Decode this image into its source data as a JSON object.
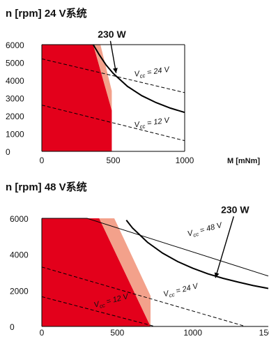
{
  "chart_data": [
    {
      "type": "line",
      "title": "n [rpm]   24 V系统",
      "xlabel": "M [mNm]",
      "xlim": [
        0,
        1000
      ],
      "ylim": [
        0,
        6000
      ],
      "x_ticks": [
        0,
        500,
        1000
      ],
      "y_ticks": [
        0,
        1000,
        2000,
        3000,
        4000,
        5000,
        6000
      ],
      "regions": [
        {
          "name": "continuous-operation",
          "color": "#e3001b",
          "points": [
            [
              0,
              0
            ],
            [
              0,
              6000
            ],
            [
              360,
              6000
            ],
            [
              490,
              2300
            ],
            [
              490,
              0
            ]
          ]
        },
        {
          "name": "short-term-operation",
          "color": "#f3a18b",
          "points": [
            [
              360,
              6000
            ],
            [
              410,
              6000
            ],
            [
              490,
              3400
            ],
            [
              490,
              2300
            ]
          ]
        }
      ],
      "series": [
        {
          "name": "230 W",
          "style": "solid",
          "color": "#000000",
          "width": 2,
          "x": [
            360,
            400,
            450,
            500,
            600,
            700,
            800,
            900,
            1000
          ],
          "y": [
            6000,
            5460,
            4850,
            4380,
            3650,
            3130,
            2740,
            2430,
            2190
          ]
        },
        {
          "name": "Vcc = 24 V",
          "style": "dashed",
          "color": "#000000",
          "width": 1,
          "x": [
            0,
            1000
          ],
          "y": [
            5200,
            3300
          ]
        },
        {
          "name": "Vcc = 12 V",
          "style": "dashed",
          "color": "#000000",
          "width": 1,
          "x": [
            0,
            1000
          ],
          "y": [
            2600,
            600
          ]
        }
      ],
      "annotations": [
        {
          "text": "230 W",
          "kind": "power",
          "x": 490,
          "y": 6400,
          "arrow_to": [
            520,
            4400
          ]
        },
        {
          "text": "V",
          "sub": "cc",
          "rest": " = 24 V",
          "x": 650,
          "y": 4200,
          "rotate": -8
        },
        {
          "text": "V",
          "sub": "cc",
          "rest": " = 12 V",
          "x": 650,
          "y": 1350,
          "rotate": -8
        }
      ]
    },
    {
      "type": "line",
      "title": "n [rpm]   48 V系统",
      "xlabel": "",
      "xlim": [
        0,
        1500
      ],
      "ylim": [
        0,
        6000
      ],
      "x_ticks": [
        0,
        500,
        1000,
        1500
      ],
      "y_ticks": [
        0,
        2000,
        4000,
        6000
      ],
      "regions": [
        {
          "name": "continuous-operation",
          "color": "#e3001b",
          "points": [
            [
              0,
              0
            ],
            [
              0,
              6000
            ],
            [
              380,
              6000
            ],
            [
              720,
              0
            ]
          ]
        },
        {
          "name": "short-term-operation",
          "color": "#f3a18b",
          "points": [
            [
              380,
              6000
            ],
            [
              480,
              6000
            ],
            [
              720,
              1700
            ],
            [
              720,
              0
            ]
          ]
        }
      ],
      "series": [
        {
          "name": "230 W",
          "style": "solid",
          "color": "#000000",
          "width": 2,
          "x": [
            560,
            600,
            700,
            800,
            900,
            1000,
            1100,
            1200,
            1300,
            1400,
            1500
          ],
          "y": [
            5900,
            5470,
            4670,
            4070,
            3600,
            3230,
            2920,
            2670,
            2460,
            2270,
            2110
          ]
        },
        {
          "name": "Vcc = 48 V",
          "style": "solid",
          "color": "#000000",
          "width": 1,
          "x": [
            0,
            300,
            1500
          ],
          "y": [
            6000,
            6000,
            2800
          ]
        },
        {
          "name": "Vcc = 24 V",
          "style": "dashed",
          "color": "#000000",
          "width": 1,
          "x": [
            0,
            1350
          ],
          "y": [
            3300,
            0
          ]
        },
        {
          "name": "Vcc = 12 V",
          "style": "dashed",
          "color": "#000000",
          "width": 1,
          "x": [
            0,
            750
          ],
          "y": [
            1650,
            0
          ]
        }
      ],
      "annotations": [
        {
          "text": "230 W",
          "kind": "power",
          "x": 1280,
          "y": 6300,
          "arrow_to": [
            1150,
            2700
          ]
        },
        {
          "text": "V",
          "sub": "cc",
          "rest": " = 48 V",
          "x": 970,
          "y": 5000,
          "rotate": -15
        },
        {
          "text": "V",
          "sub": "cc",
          "rest": " = 24 V",
          "x": 810,
          "y": 1650,
          "rotate": -14
        },
        {
          "text": "V",
          "sub": "cc",
          "rest": " = 12 V",
          "x": 350,
          "y": 1050,
          "rotate": -15
        }
      ]
    }
  ]
}
